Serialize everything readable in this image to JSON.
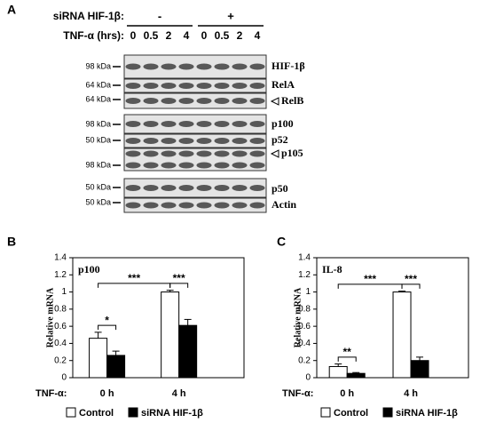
{
  "panel_a": {
    "label": "A",
    "sirna_label": "siRNA HIF-1β:",
    "sirna_states": [
      "-",
      "+"
    ],
    "tnf_label": "TNF-α (hrs):",
    "times": [
      "0",
      "0.5",
      "2",
      "4",
      "0",
      "0.5",
      "2",
      "4"
    ],
    "rows": [
      {
        "marker": "98 kDa",
        "protein": "HIF-1β"
      },
      {
        "marker": "64 kDa",
        "protein": "RelA"
      },
      {
        "marker": "64 kDa",
        "protein": "RelB"
      },
      {
        "marker": "98 kDa",
        "protein": "p100"
      },
      {
        "marker": "50 kDa",
        "protein": "p52"
      },
      {
        "marker": "98 kDa",
        "protein": "p105"
      },
      {
        "marker": "50 kDa",
        "protein": "p50"
      },
      {
        "marker": "50 kDa",
        "protein": "Actin"
      }
    ]
  },
  "chart_data": [
    {
      "type": "bar",
      "panel_label": "B",
      "title": "p100",
      "y_label": "Relative mRNA",
      "x_label": "TNF-α:",
      "categories": [
        "0 h",
        "4 h"
      ],
      "series": [
        {
          "name": "Control",
          "color": "#ffffff",
          "values": [
            0.46,
            1.0
          ],
          "errors": [
            0.07,
            0.02
          ]
        },
        {
          "name": "siRNA HIF-1β",
          "color": "#000000",
          "values": [
            0.26,
            0.61
          ],
          "errors": [
            0.05,
            0.07
          ]
        }
      ],
      "annotations": [
        "*",
        "***",
        "***"
      ],
      "ylim": [
        0,
        1.4
      ],
      "yticks": [
        0,
        0.2,
        0.4,
        0.6,
        0.8,
        1,
        1.2,
        1.4
      ]
    },
    {
      "type": "bar",
      "panel_label": "C",
      "title": "IL-8",
      "y_label": "Relative mRNA",
      "x_label": "TNF-α:",
      "categories": [
        "0 h",
        "4 h"
      ],
      "series": [
        {
          "name": "Control",
          "color": "#ffffff",
          "values": [
            0.13,
            1.0
          ],
          "errors": [
            0.03,
            0.01
          ]
        },
        {
          "name": "siRNA HIF-1β",
          "color": "#000000",
          "values": [
            0.05,
            0.2
          ],
          "errors": [
            0.01,
            0.04
          ]
        }
      ],
      "annotations": [
        "**",
        "***",
        "***"
      ],
      "ylim": [
        0,
        1.4
      ],
      "yticks": [
        0,
        0.2,
        0.4,
        0.6,
        0.8,
        1,
        1.2,
        1.4
      ]
    }
  ]
}
